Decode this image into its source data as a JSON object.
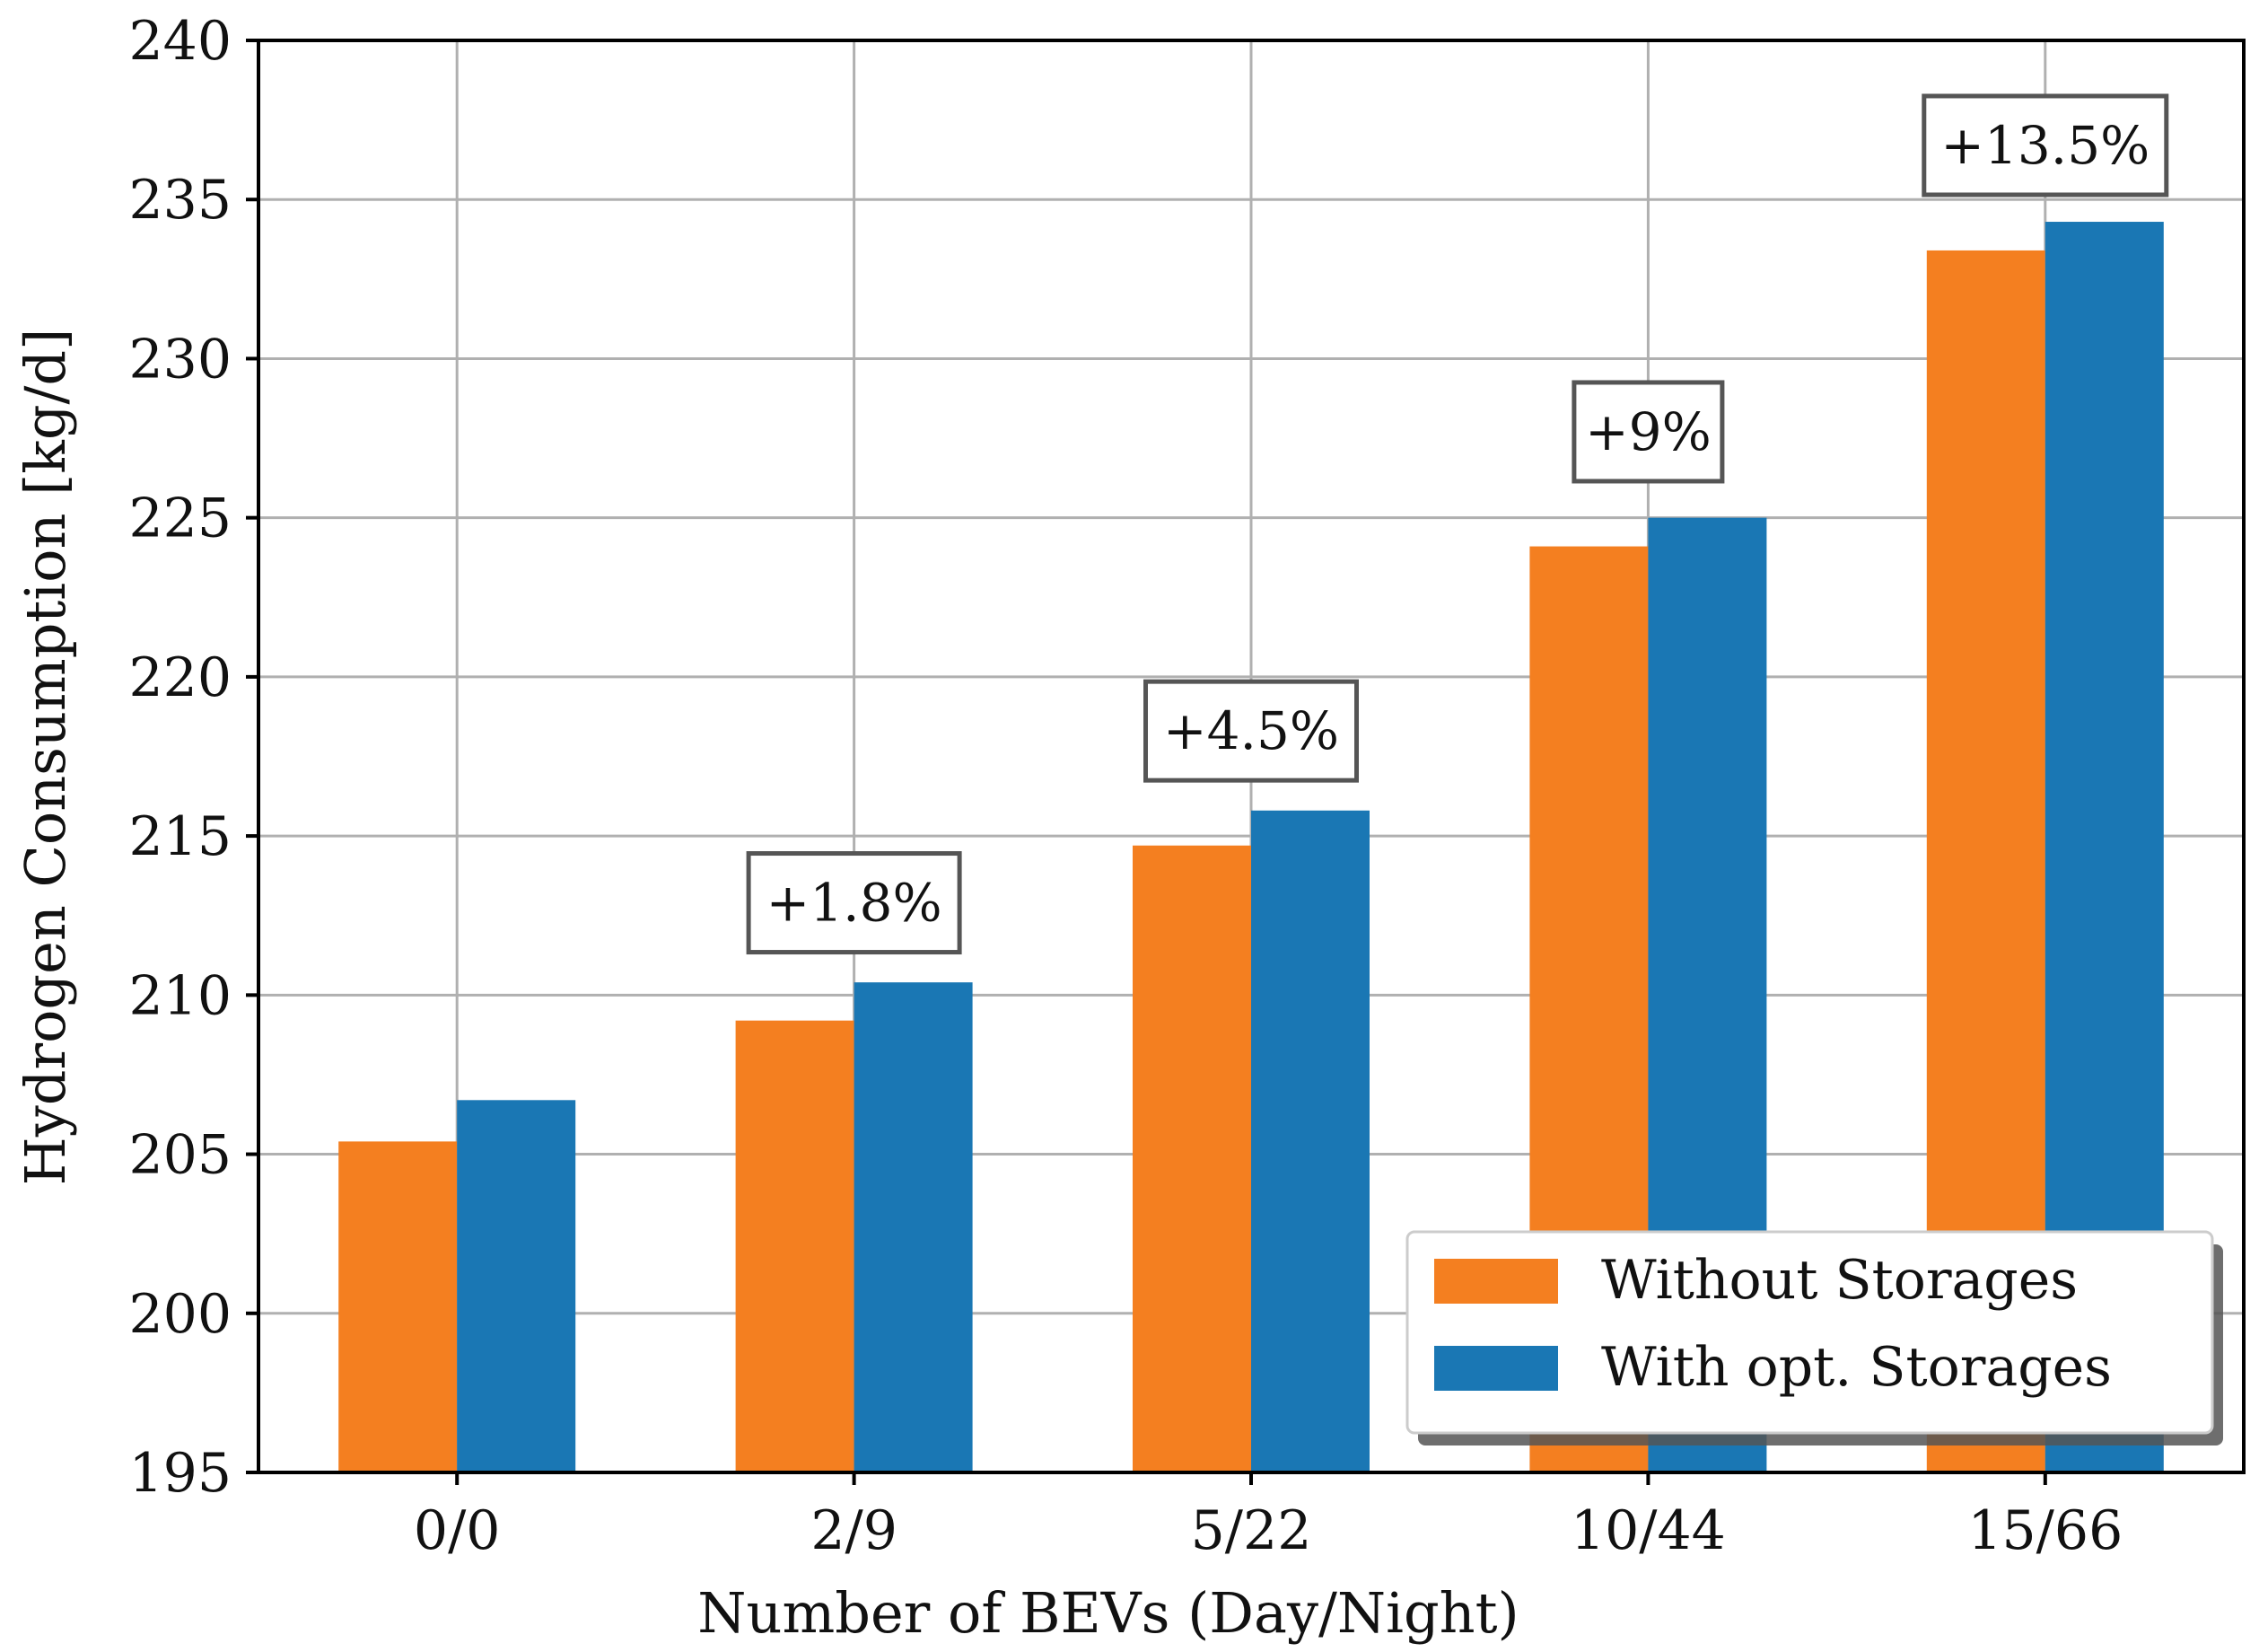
{
  "chart_data": {
    "type": "bar",
    "title": "",
    "xlabel": "Number of BEVs (Day/Night)",
    "ylabel": "Hydrogen Consumption [kg/d]",
    "categories": [
      "0/0",
      "2/9",
      "5/22",
      "10/44",
      "15/66"
    ],
    "ylim": [
      195,
      240
    ],
    "yticks": [
      195,
      200,
      205,
      210,
      215,
      220,
      225,
      230,
      235,
      240
    ],
    "grid": true,
    "legend_position": "bottom-right",
    "series": [
      {
        "name": "Without Storages",
        "color": "#f47f20",
        "values": [
          205.4,
          209.2,
          214.7,
          224.1,
          233.4
        ]
      },
      {
        "name": "With opt. Storages",
        "color": "#1a77b4",
        "values": [
          206.7,
          210.4,
          215.8,
          225.0,
          234.3
        ]
      }
    ],
    "annotations": [
      {
        "category": "2/9",
        "text": "+1.8%",
        "y": 212.9
      },
      {
        "category": "5/22",
        "text": "+4.5%",
        "y": 218.3
      },
      {
        "category": "10/44",
        "text": "+9%",
        "y": 227.7
      },
      {
        "category": "15/66",
        "text": "+13.5%",
        "y": 236.7
      }
    ]
  }
}
